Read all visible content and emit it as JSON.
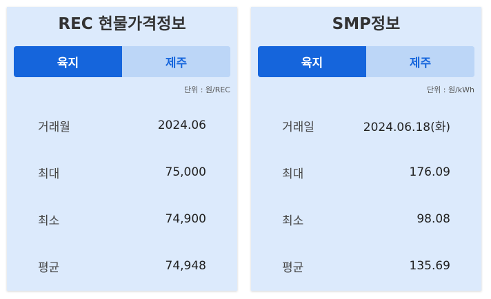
{
  "rec_panel": {
    "title": "REC 현물가격정보",
    "tabs": [
      {
        "label": "육지",
        "active": true
      },
      {
        "label": "제주",
        "active": false
      }
    ],
    "unit": "단위 : 원/REC",
    "rows": [
      {
        "label": "거래월",
        "value": "2024.06"
      },
      {
        "label": "최대",
        "value": "75,000"
      },
      {
        "label": "최소",
        "value": "74,900"
      },
      {
        "label": "평균",
        "value": "74,948"
      }
    ]
  },
  "smp_panel": {
    "title": "SMP정보",
    "tabs": [
      {
        "label": "육지",
        "active": true
      },
      {
        "label": "제주",
        "active": false
      }
    ],
    "unit": "단위 : 원/kWh",
    "rows": [
      {
        "label": "거래일",
        "value": "2024.06.18(화)"
      },
      {
        "label": "최대",
        "value": "176.09"
      },
      {
        "label": "최소",
        "value": "98.08"
      },
      {
        "label": "평균",
        "value": "135.69"
      }
    ]
  },
  "colors": {
    "panel_bg": "#dceafc",
    "tab_active": "#1565dc",
    "tab_inactive": "#bcd6f7",
    "text": "#333333"
  }
}
